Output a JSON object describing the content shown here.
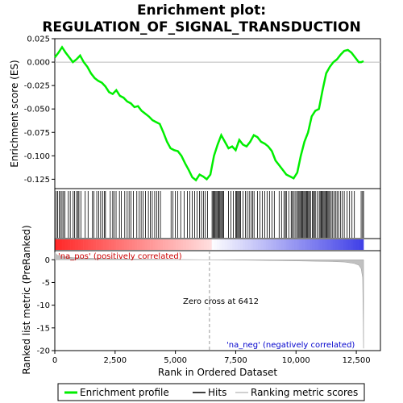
{
  "chart_data": {
    "type": "line",
    "title_line1": "Enrichment plot:",
    "title_line2": "REGULATION_OF_SIGNAL_TRANSDUCTION",
    "top_panel": {
      "ylabel": "Enrichment score (ES)",
      "ylim": [
        -0.135,
        0.025
      ],
      "yticks": [
        "0.025",
        "0.000",
        "-0.025",
        "-0.050",
        "-0.075",
        "-0.100",
        "-0.125"
      ],
      "ytick_values": [
        0.025,
        0.0,
        -0.025,
        -0.05,
        -0.075,
        -0.1,
        -0.125
      ],
      "line_color": "#00ee00",
      "es_curve": {
        "x": [
          0,
          150,
          300,
          450,
          600,
          750,
          900,
          1050,
          1200,
          1350,
          1500,
          1650,
          1800,
          1950,
          2100,
          2250,
          2400,
          2550,
          2700,
          2850,
          3000,
          3150,
          3300,
          3450,
          3600,
          3750,
          3900,
          4050,
          4200,
          4350,
          4500,
          4650,
          4800,
          4950,
          5100,
          5250,
          5400,
          5550,
          5700,
          5850,
          6000,
          6150,
          6300,
          6450,
          6600,
          6750,
          6900,
          7050,
          7200,
          7350,
          7500,
          7650,
          7800,
          7950,
          8100,
          8250,
          8400,
          8550,
          8700,
          8850,
          9000,
          9150,
          9300,
          9450,
          9600,
          9750,
          9900,
          10050,
          10200,
          10350,
          10500,
          10650,
          10800,
          10950,
          11100,
          11250,
          11400,
          11550,
          11700,
          11850,
          12000,
          12150,
          12300,
          12450,
          12600,
          12700,
          12800
        ],
        "y": [
          0.005,
          0.01,
          0.016,
          0.01,
          0.005,
          0.0,
          0.003,
          0.007,
          0.0,
          -0.005,
          -0.012,
          -0.017,
          -0.02,
          -0.022,
          -0.026,
          -0.032,
          -0.034,
          -0.03,
          -0.036,
          -0.038,
          -0.042,
          -0.044,
          -0.048,
          -0.047,
          -0.052,
          -0.055,
          -0.058,
          -0.062,
          -0.064,
          -0.066,
          -0.075,
          -0.085,
          -0.092,
          -0.094,
          -0.095,
          -0.1,
          -0.108,
          -0.115,
          -0.123,
          -0.126,
          -0.12,
          -0.122,
          -0.125,
          -0.12,
          -0.1,
          -0.088,
          -0.078,
          -0.085,
          -0.092,
          -0.09,
          -0.094,
          -0.083,
          -0.088,
          -0.09,
          -0.085,
          -0.078,
          -0.08,
          -0.085,
          -0.087,
          -0.09,
          -0.095,
          -0.105,
          -0.11,
          -0.115,
          -0.12,
          -0.122,
          -0.124,
          -0.118,
          -0.1,
          -0.085,
          -0.075,
          -0.058,
          -0.052,
          -0.05,
          -0.03,
          -0.012,
          -0.005,
          0.0,
          0.003,
          0.008,
          0.012,
          0.013,
          0.01,
          0.005,
          0.0,
          0.0,
          0.001
        ]
      }
    },
    "hits_panel": {
      "description_positions": [
        60,
        120,
        180,
        240,
        300,
        360,
        420,
        560,
        640,
        760,
        820,
        900,
        960,
        1000,
        1080,
        1260,
        1380,
        1560,
        1620,
        1740,
        1820,
        1900,
        1980,
        2060,
        2100,
        2300,
        2400,
        2460,
        2540,
        2680,
        2760,
        2900,
        3000,
        3080,
        3160,
        3260,
        3400,
        3500,
        3580,
        3660,
        3760,
        3880,
        3960,
        4040,
        4140,
        4220,
        4300,
        4380,
        4820,
        4900,
        5000,
        5100,
        5220,
        5360,
        5500,
        5600,
        5700,
        5800,
        5900,
        6000,
        6080,
        6160,
        6240,
        6330,
        6520,
        6560,
        6600,
        6640,
        6680,
        6720,
        6760,
        6800,
        6840,
        6880,
        6920,
        6960,
        7000,
        7200,
        7300,
        7400,
        7500,
        7540,
        7580,
        7620,
        7660,
        7700,
        7800,
        7900,
        7980,
        8060,
        8140,
        8200,
        8260,
        8400,
        8500,
        8600,
        8700,
        8800,
        8900,
        9000,
        9100,
        9300,
        9400,
        9500,
        9560,
        9600,
        9700,
        9800,
        9840,
        9900,
        9960,
        10020,
        10080,
        10120,
        10160,
        10200,
        10240,
        10280,
        10320,
        10360,
        10400,
        10440,
        10480,
        10520,
        10560,
        10600,
        10680,
        10720,
        10760,
        10800,
        10880,
        10960,
        11000,
        11040,
        11080,
        11120,
        11160,
        11200,
        11240,
        11280,
        11320,
        11360,
        11400,
        11460,
        11520,
        11580,
        11640,
        11700,
        11760,
        11840,
        11920,
        12000,
        12120,
        12220,
        12320,
        12420,
        12700,
        12760,
        12800
      ]
    },
    "bottom_panel": {
      "ylabel": "Ranked list metric (PreRanked)",
      "ylim": [
        -20,
        2
      ],
      "yticks": [
        "0",
        "-5",
        "-10",
        "-15",
        "-20"
      ],
      "ytick_values": [
        0,
        -5,
        -10,
        -15,
        -20
      ],
      "pos_label": "'na_pos' (positively correlated)",
      "neg_label": "'na_neg' (negatively correlated)",
      "zero_cross_label": "Zero cross at 6412",
      "zero_cross": 6412,
      "metric_x": [
        0,
        100,
        300,
        800,
        2000,
        4000,
        6412,
        8000,
        10000,
        11500,
        12000,
        12400,
        12600,
        12700,
        12760,
        12800
      ],
      "metric_y": [
        1.6,
        1.0,
        0.7,
        0.45,
        0.25,
        0.1,
        0.0,
        -0.1,
        -0.25,
        -0.4,
        -0.5,
        -0.8,
        -1.2,
        -2.0,
        -4.0,
        -19.5
      ]
    },
    "xaxis": {
      "xlabel": "Rank in Ordered Dataset",
      "xlim": [
        0,
        13500
      ],
      "xticks": [
        "0",
        "2,500",
        "5,000",
        "7,500",
        "10,000",
        "12,500"
      ],
      "xtick_values": [
        0,
        2500,
        5000,
        7500,
        10000,
        12500
      ]
    },
    "legend": {
      "placement": "bottom",
      "entries": [
        {
          "label": "Enrichment profile",
          "color": "#00ee00"
        },
        {
          "label": "Hits",
          "color": "#000000"
        },
        {
          "label": "Ranking metric scores",
          "color": "#c0c0c0"
        }
      ]
    },
    "colors": {
      "pos_text": "#cc0000",
      "neg_text": "#0000cc",
      "zero_line": "#999999"
    }
  }
}
